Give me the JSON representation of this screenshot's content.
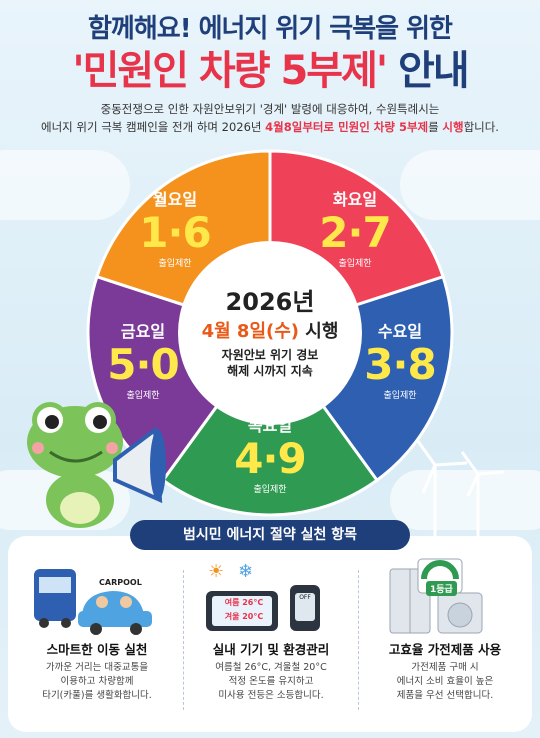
{
  "title": {
    "line1": "함께해요! 에너지 위기 극복을 위한",
    "line2_highlight": "'민원인 차량 5부제'",
    "line2_rest": " 안내"
  },
  "intro": {
    "line1": "중동전쟁으로 인한 자원안보위기 '경계' 발령에 대응하여, 수원특례시는",
    "line2_prefix": "에너지 위기 극복 캠페인을 전개 하며 2026년 ",
    "line2_highlight": "4월8일부터로 민원인 차량 5부제",
    "line2_mid": "를 ",
    "line2_highlight2": "시행",
    "line2_suffix": "합니다."
  },
  "wheel": {
    "segments": [
      {
        "day": "월요일",
        "numbers": "1·6",
        "note": "출입제한",
        "color": "#f5921e"
      },
      {
        "day": "화요일",
        "numbers": "2·7",
        "note": "출입제한",
        "color": "#ef4259"
      },
      {
        "day": "수요일",
        "numbers": "3·8",
        "note": "출입제한",
        "color": "#2e5fb0"
      },
      {
        "day": "목요일",
        "numbers": "4·9",
        "note": "출입제한",
        "color": "#2f9a52"
      },
      {
        "day": "금요일",
        "numbers": "5·0",
        "note": "출입제한",
        "color": "#7b3a97"
      }
    ],
    "center": {
      "year": "2026년",
      "date": "4월 8일(수)",
      "date_suffix": " 시행",
      "sub_line1": "자원안보 위기 경보",
      "sub_line2": "해제 시까지 지속"
    }
  },
  "practice": {
    "title": "범시민 에너지 절약 실천 항목",
    "items": [
      {
        "heading": "스마트한 이동 실천",
        "line1": "가까운 거리는 대중교통을",
        "line2": "이용하고 차량함께",
        "line3": "타기(카풀)를 생활화합니다.",
        "badge": "CARPOOL"
      },
      {
        "heading": "실내 기기 및 환경관리",
        "line1": "여름철 26°C, 겨울철 20°C",
        "line2": "적정 온도를 유지하고",
        "line3": "미사용 전등은 소등합니다.",
        "thermo1": "여름 26°C",
        "thermo2": "겨울 20°C",
        "switch_label": "OFF"
      },
      {
        "heading": "고효율 가전제품 사용",
        "line1": "가전제품 구매 시",
        "line2": "에너지 소비 효율이 높은",
        "line3": "제품을 우선 선택합니다.",
        "badge": "1등급"
      }
    ]
  },
  "colors": {
    "navy": "#1f3f7a",
    "red": "#e8344a",
    "yellow": "#ffe94a"
  }
}
